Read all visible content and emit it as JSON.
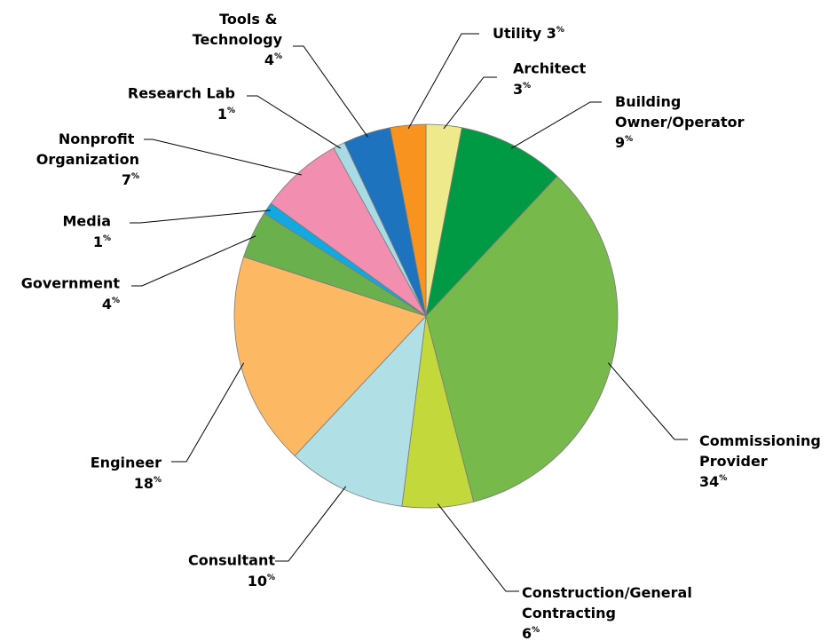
{
  "chart_data": {
    "type": "pie",
    "categories": [
      "Architect",
      "Building Owner/Operator",
      "Commissioning Provider",
      "Construction/General Contracting",
      "Consultant",
      "Engineer",
      "Government",
      "Media",
      "Nonprofit Organization",
      "Research Lab",
      "Tools & Technology",
      "Utility"
    ],
    "values": [
      3,
      9,
      34,
      6,
      10,
      18,
      4,
      1,
      7,
      1,
      4,
      3
    ],
    "value_labels": [
      "3%",
      "9%",
      "34%",
      "6%",
      "10%",
      "18%",
      "4%",
      "1%",
      "7%",
      "1%",
      "4%",
      "3%"
    ],
    "colors": [
      "#eee98a",
      "#009a44",
      "#77b94a",
      "#c2d83b",
      "#b0dfe5",
      "#fdb863",
      "#6ab04c",
      "#13a8df",
      "#f28fb0",
      "#a8dbe3",
      "#1e73be",
      "#f7931e"
    ]
  }
}
